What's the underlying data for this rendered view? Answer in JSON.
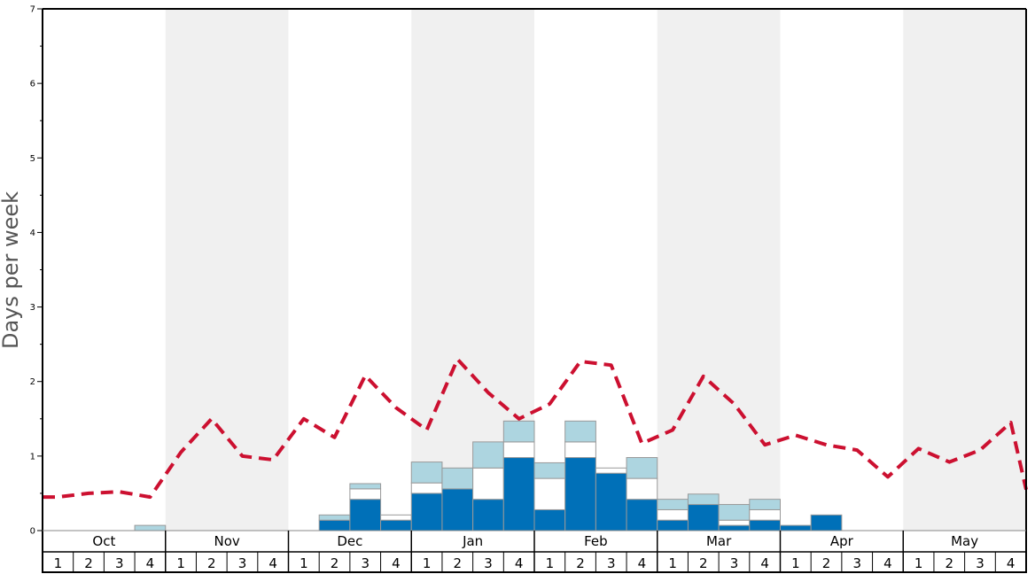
{
  "chart_data": {
    "type": "bar",
    "ylabel": "Days per week",
    "ylim": [
      0,
      7
    ],
    "yticks": [
      "0",
      "1",
      "2",
      "3",
      "4",
      "5",
      "6",
      "7"
    ],
    "months": [
      "Oct",
      "Nov",
      "Dec",
      "Jan",
      "Feb",
      "Mar",
      "Apr",
      "May"
    ],
    "weeks": [
      "1",
      "2",
      "3",
      "4"
    ],
    "shaded_months": [
      "Nov",
      "Jan",
      "Mar",
      "May"
    ],
    "colors": {
      "dark": "#0070b8",
      "middle": "#ffffff",
      "light": "#add5e0",
      "line": "#cc1030",
      "shade": "#f0f0f0",
      "bar_stroke": "#999999"
    },
    "series": [
      {
        "kind": "stacked-bar-bottom",
        "values": [
          0,
          0,
          0,
          0,
          0,
          0,
          0,
          0,
          0,
          0.14,
          0.42,
          0.14,
          0.5,
          0.56,
          0.42,
          0.98,
          0.28,
          0.98,
          0.77,
          0.42,
          0.14,
          0.35,
          0.07,
          0.14,
          0.07,
          0.21,
          0,
          0,
          0,
          0,
          0,
          0
        ]
      },
      {
        "kind": "stacked-bar-middle",
        "values": [
          0,
          0,
          0,
          0,
          0,
          0,
          0,
          0,
          0,
          0,
          0.14,
          0.07,
          0.14,
          0,
          0.42,
          0.21,
          0.42,
          0.21,
          0.07,
          0.28,
          0.14,
          0,
          0.07,
          0.14,
          0,
          0,
          0,
          0,
          0,
          0,
          0,
          0
        ]
      },
      {
        "kind": "stacked-bar-top",
        "values": [
          0,
          0,
          0,
          0.07,
          0,
          0,
          0,
          0,
          0,
          0.07,
          0.07,
          0,
          0.28,
          0.28,
          0.35,
          0.28,
          0.21,
          0.28,
          0,
          0.28,
          0.14,
          0.14,
          0.21,
          0.14,
          0,
          0,
          0,
          0,
          0,
          0,
          0,
          0
        ]
      },
      {
        "kind": "dashed-line",
        "values": [
          0.45,
          0.5,
          0.52,
          0.45,
          1.05,
          1.5,
          1.0,
          0.95,
          1.5,
          1.25,
          2.08,
          1.65,
          1.35,
          2.3,
          1.85,
          1.5,
          1.7,
          2.27,
          2.22,
          1.17,
          1.35,
          2.07,
          1.7,
          1.15,
          1.28,
          1.15,
          1.08,
          0.72,
          1.1,
          0.92,
          1.08,
          1.45
        ]
      }
    ],
    "line_end_value": 0.55
  }
}
